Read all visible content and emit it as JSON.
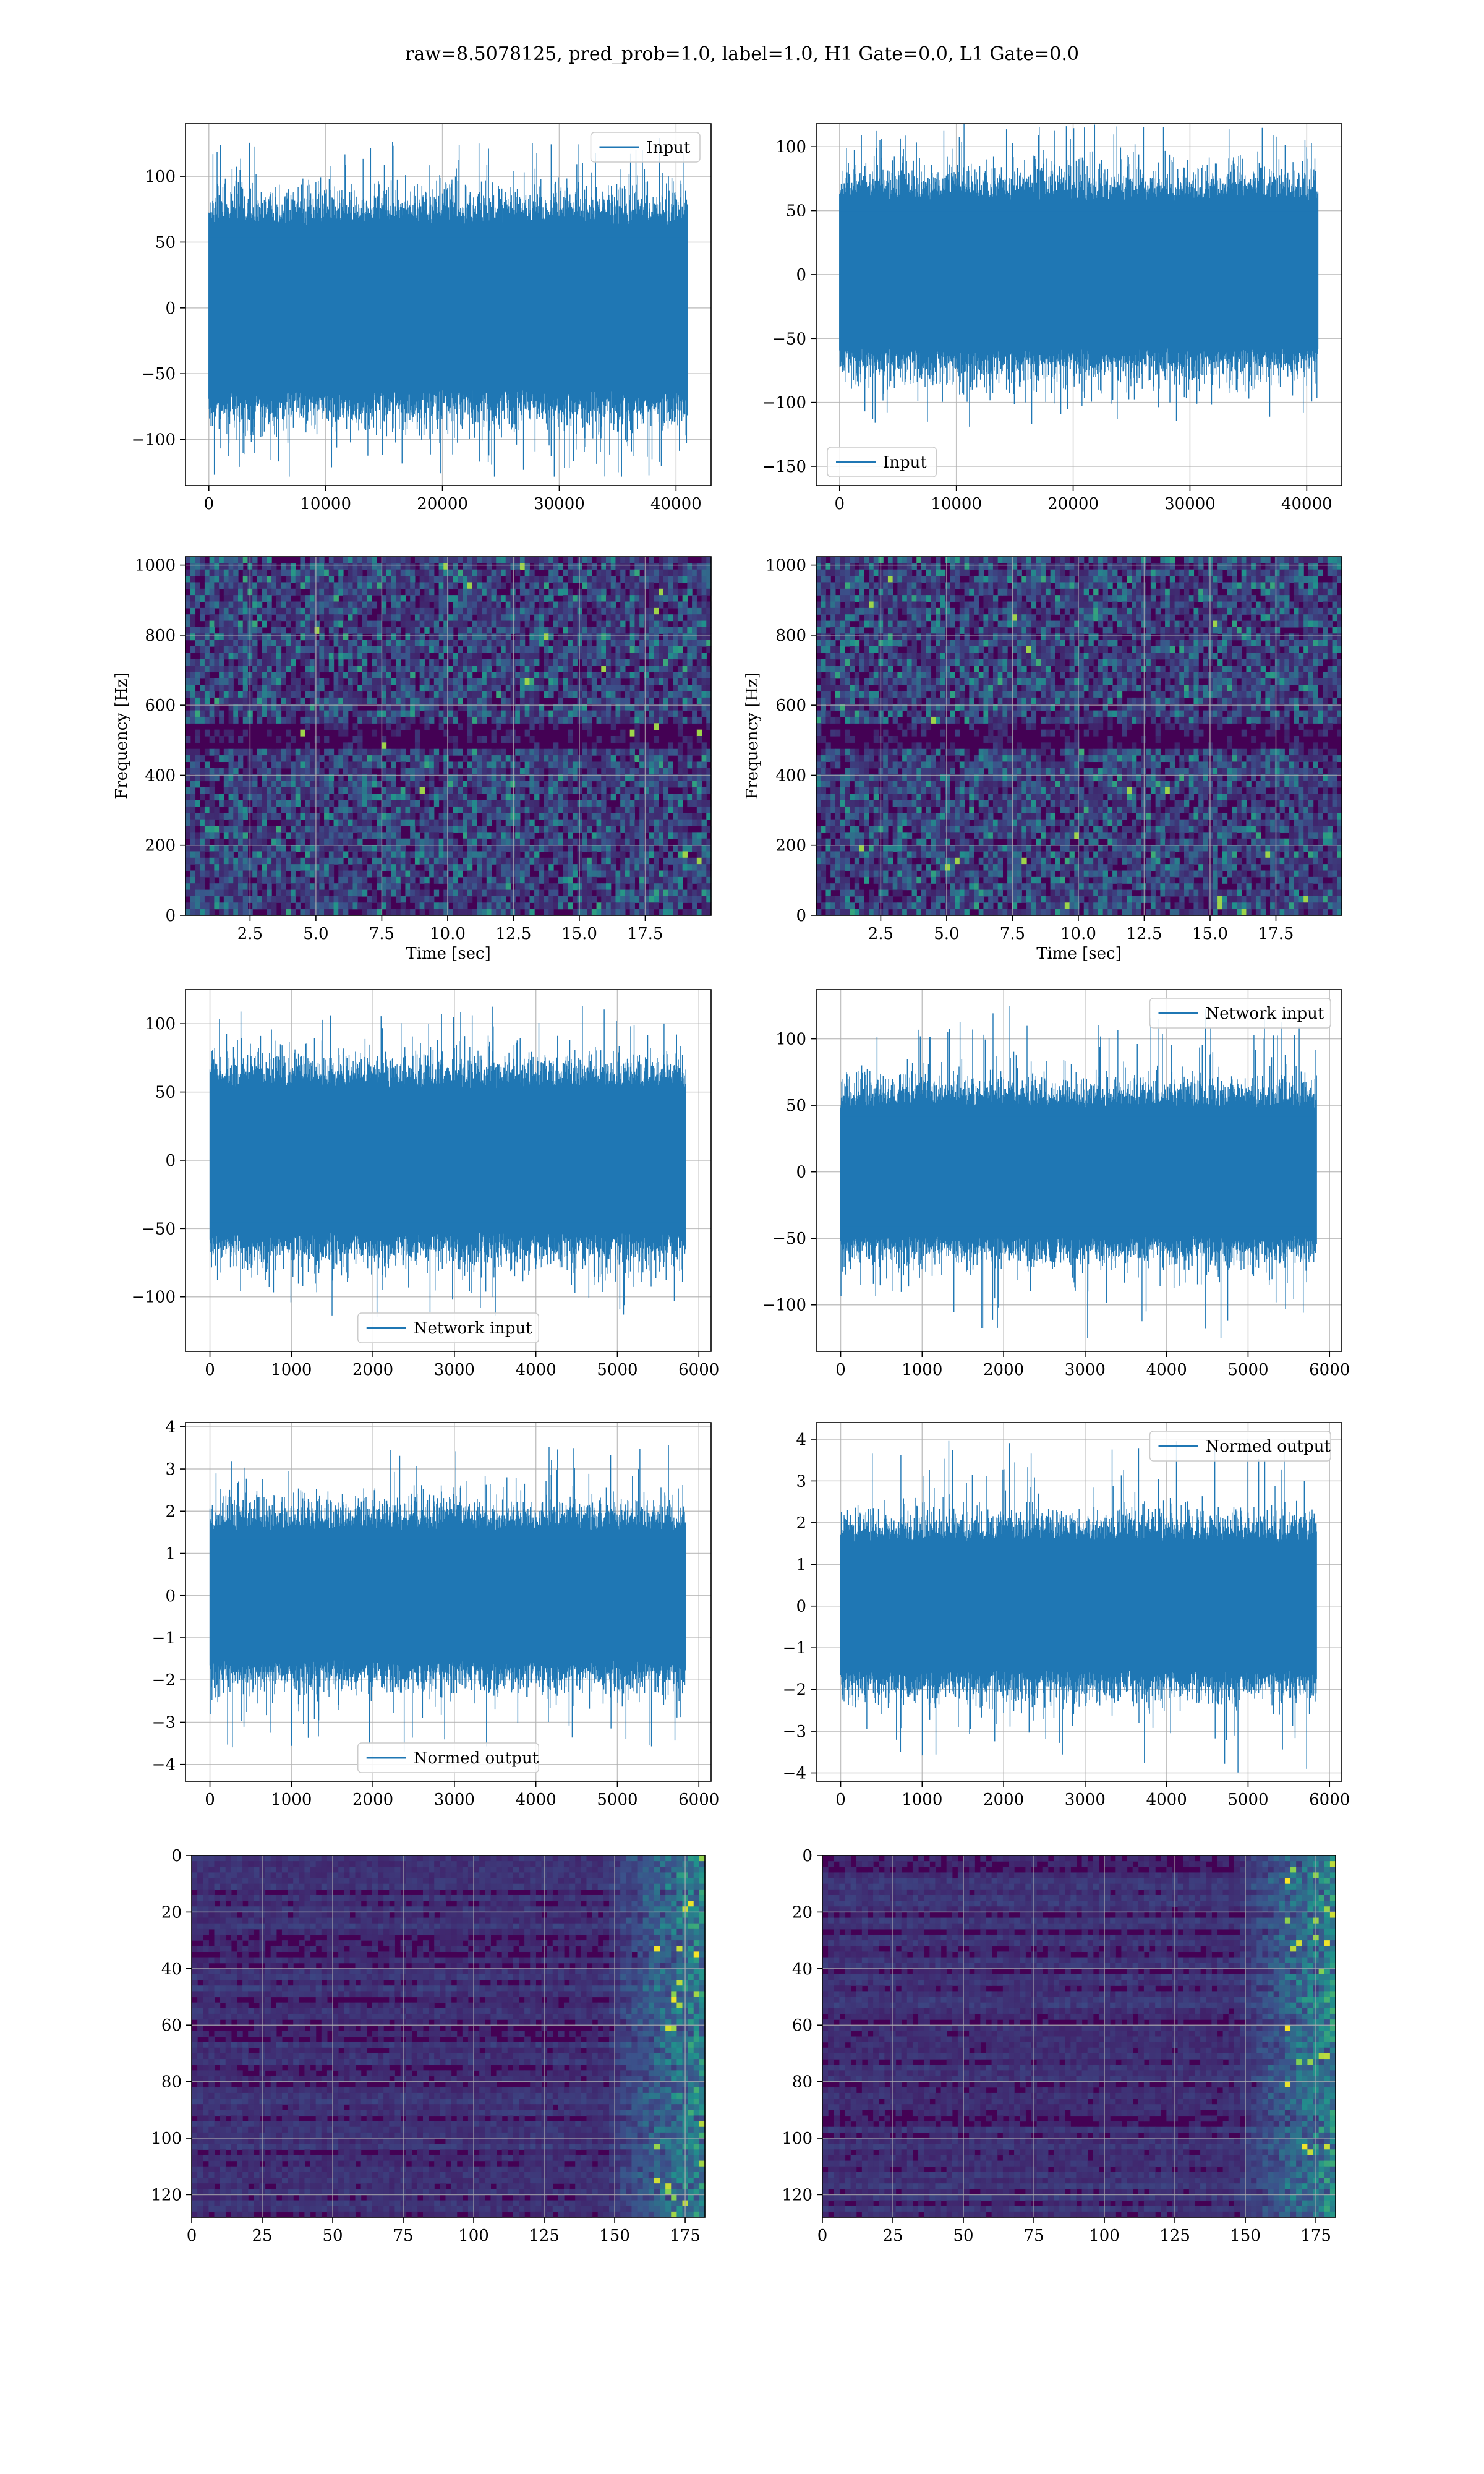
{
  "figure": {
    "suptitle": "raw=8.5078125, pred_prob=1.0, label=1.0, H1 Gate=0.0, L1 Gate=0.0"
  },
  "colors": {
    "line": "#1f77b4",
    "grid": "#b0b0b0",
    "viridis_dark": "#440154",
    "viridis_mid": "#21918c",
    "viridis_bright": "#fde725"
  },
  "chart_data": [
    {
      "id": "h1-input",
      "type": "line",
      "grid": true,
      "legend": "upper right",
      "series": [
        {
          "name": "Input",
          "amplitude": 65,
          "spike_max": 130,
          "n_points": 40960
        }
      ],
      "xlim": [
        -2000,
        43000
      ],
      "ylim": [
        -135,
        140
      ],
      "xticks": [
        0,
        10000,
        20000,
        30000,
        40000
      ],
      "yticks": [
        -100,
        -50,
        0,
        50,
        100
      ],
      "xlabel": "",
      "ylabel": ""
    },
    {
      "id": "l1-input",
      "type": "line",
      "grid": true,
      "legend": "lower left",
      "series": [
        {
          "name": "Input",
          "amplitude": 60,
          "spike_max": 120,
          "n_points": 40960
        }
      ],
      "xlim": [
        -2000,
        43000
      ],
      "ylim": [
        -165,
        118
      ],
      "xticks": [
        0,
        10000,
        20000,
        30000,
        40000
      ],
      "yticks": [
        -150,
        -100,
        -50,
        0,
        50,
        100
      ],
      "xlabel": "",
      "ylabel": ""
    },
    {
      "id": "h1-spectrogram",
      "type": "heatmap",
      "grid": true,
      "xlim": [
        0.05,
        20
      ],
      "ylim": [
        0,
        1024
      ],
      "xticks": [
        2.5,
        5.0,
        7.5,
        10.0,
        12.5,
        15.0,
        17.5
      ],
      "xticklabels": [
        "2.5",
        "5.0",
        "7.5",
        "10.0",
        "12.5",
        "15.0",
        "17.5"
      ],
      "yticks": [
        0,
        200,
        400,
        600,
        800,
        1000
      ],
      "xlabel": "Time [sec]",
      "ylabel": "Frequency [Hz]",
      "colormap": "viridis"
    },
    {
      "id": "l1-spectrogram",
      "type": "heatmap",
      "grid": true,
      "xlim": [
        0.05,
        20
      ],
      "ylim": [
        0,
        1024
      ],
      "xticks": [
        2.5,
        5.0,
        7.5,
        10.0,
        12.5,
        15.0,
        17.5
      ],
      "xticklabels": [
        "2.5",
        "5.0",
        "7.5",
        "10.0",
        "12.5",
        "15.0",
        "17.5"
      ],
      "yticks": [
        0,
        200,
        400,
        600,
        800,
        1000
      ],
      "xlabel": "Time [sec]",
      "ylabel": "Frequency [Hz]",
      "colormap": "viridis"
    },
    {
      "id": "h1-network-input",
      "type": "line",
      "grid": true,
      "legend": "lower center",
      "series": [
        {
          "name": "Network input",
          "amplitude": 55,
          "spike_max": 115,
          "n_points": 5840
        }
      ],
      "xlim": [
        -300,
        6150
      ],
      "ylim": [
        -140,
        125
      ],
      "xticks": [
        0,
        1000,
        2000,
        3000,
        4000,
        5000,
        6000
      ],
      "yticks": [
        -100,
        -50,
        0,
        50,
        100
      ],
      "xlabel": "",
      "ylabel": ""
    },
    {
      "id": "l1-network-input",
      "type": "line",
      "grid": true,
      "legend": "upper right",
      "series": [
        {
          "name": "Network input",
          "amplitude": 50,
          "spike_max": 125,
          "n_points": 5840
        }
      ],
      "xlim": [
        -300,
        6150
      ],
      "ylim": [
        -135,
        137
      ],
      "xticks": [
        0,
        1000,
        2000,
        3000,
        4000,
        5000,
        6000
      ],
      "yticks": [
        -100,
        -50,
        0,
        50,
        100
      ],
      "xlabel": "",
      "ylabel": ""
    },
    {
      "id": "h1-normed-output",
      "type": "line",
      "grid": true,
      "legend": "lower center",
      "series": [
        {
          "name": "Normed output",
          "amplitude": 1.6,
          "spike_max": 3.7,
          "n_points": 5840
        }
      ],
      "xlim": [
        -300,
        6150
      ],
      "ylim": [
        -4.4,
        4.1
      ],
      "xticks": [
        0,
        1000,
        2000,
        3000,
        4000,
        5000,
        6000
      ],
      "yticks": [
        -4,
        -3,
        -2,
        -1,
        0,
        1,
        2,
        3,
        4
      ],
      "xlabel": "",
      "ylabel": ""
    },
    {
      "id": "l1-normed-output",
      "type": "line",
      "grid": true,
      "legend": "upper right",
      "series": [
        {
          "name": "Normed output",
          "amplitude": 1.6,
          "spike_max": 4.0,
          "n_points": 5840
        }
      ],
      "xlim": [
        -300,
        6150
      ],
      "ylim": [
        -4.2,
        4.4
      ],
      "xticks": [
        0,
        1000,
        2000,
        3000,
        4000,
        5000,
        6000
      ],
      "yticks": [
        -4,
        -3,
        -2,
        -1,
        0,
        1,
        2,
        3,
        4
      ],
      "xlabel": "",
      "ylabel": ""
    },
    {
      "id": "h1-features",
      "type": "heatmap",
      "grid": true,
      "xlim": [
        0,
        182
      ],
      "ylim": [
        128,
        0
      ],
      "xticks": [
        0,
        25,
        50,
        75,
        100,
        125,
        150,
        175
      ],
      "yticks": [
        0,
        20,
        40,
        60,
        80,
        100,
        120
      ],
      "xlabel": "",
      "ylabel": "",
      "colormap": "viridis"
    },
    {
      "id": "l1-features",
      "type": "heatmap",
      "grid": true,
      "xlim": [
        0,
        182
      ],
      "ylim": [
        128,
        0
      ],
      "xticks": [
        0,
        25,
        50,
        75,
        100,
        125,
        150,
        175
      ],
      "yticks": [
        0,
        20,
        40,
        60,
        80,
        100,
        120
      ],
      "xlabel": "",
      "ylabel": "",
      "colormap": "viridis"
    }
  ]
}
